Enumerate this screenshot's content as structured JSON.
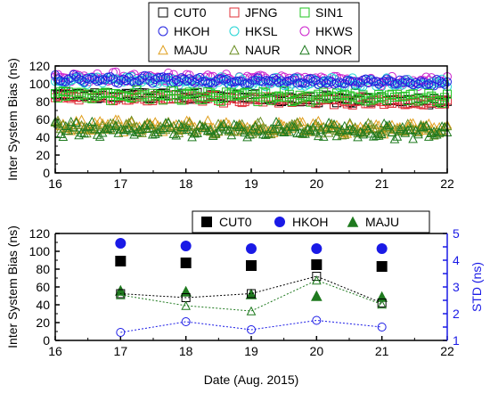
{
  "chart_data": [
    {
      "type": "scatter",
      "title": "",
      "xlabel": "",
      "ylabel": "Inter System Bias (ns)",
      "xlim": [
        16,
        22
      ],
      "ylim": [
        0,
        120
      ],
      "xticks": [
        "16",
        "17",
        "18",
        "19",
        "20",
        "21",
        "22"
      ],
      "yticks": [
        "0",
        "20",
        "40",
        "60",
        "80",
        "100",
        "120"
      ],
      "legend_placement": "top-center",
      "legend": [
        {
          "name": "CUT0",
          "marker": "square",
          "color": "#000000"
        },
        {
          "name": "JFNG",
          "marker": "square",
          "color": "#e0303a"
        },
        {
          "name": "SIN1",
          "marker": "square",
          "color": "#22c422"
        },
        {
          "name": "HKOH",
          "marker": "circle",
          "color": "#2020e0"
        },
        {
          "name": "HKSL",
          "marker": "circle",
          "color": "#22d4d4"
        },
        {
          "name": "HKWS",
          "marker": "circle",
          "color": "#cc22cc"
        },
        {
          "name": "MAJU",
          "marker": "triangle",
          "color": "#e0a020"
        },
        {
          "name": "NAUR",
          "marker": "triangle",
          "color": "#6b8e23"
        },
        {
          "name": "NNOR",
          "marker": "triangle",
          "color": "#1f7a1f"
        }
      ],
      "series": [
        {
          "name": "HKWS",
          "color": "#cc22cc",
          "marker": "circle",
          "range": [
            16.0,
            22.0
          ],
          "start": 108,
          "end": 103,
          "jitter": 4
        },
        {
          "name": "HKSL",
          "color": "#22d4d4",
          "marker": "circle",
          "range": [
            16.0,
            22.0
          ],
          "start": 104,
          "end": 100,
          "jitter": 4
        },
        {
          "name": "HKOH",
          "color": "#2020e0",
          "marker": "circle",
          "range": [
            16.0,
            22.0
          ],
          "start": 106,
          "end": 101,
          "jitter": 3
        },
        {
          "name": "CUT0",
          "color": "#000000",
          "marker": "square",
          "range": [
            16.0,
            22.0
          ],
          "start": 89,
          "end": 80,
          "jitter": 3
        },
        {
          "name": "JFNG",
          "color": "#e0303a",
          "marker": "square",
          "range": [
            16.0,
            22.0
          ],
          "start": 86,
          "end": 79,
          "jitter": 3
        },
        {
          "name": "SIN1",
          "color": "#22c422",
          "marker": "square",
          "range": [
            16.0,
            22.0
          ],
          "start": 88,
          "end": 84,
          "jitter": 4
        },
        {
          "name": "MAJU",
          "color": "#e0a020",
          "marker": "triangle",
          "range": [
            16.0,
            22.0
          ],
          "start": 54,
          "end": 50,
          "jitter": 5
        },
        {
          "name": "NAUR",
          "color": "#6b8e23",
          "marker": "triangle",
          "range": [
            16.0,
            22.0
          ],
          "start": 52,
          "end": 49,
          "jitter": 5
        },
        {
          "name": "NNOR",
          "color": "#1f7a1f",
          "marker": "triangle",
          "range": [
            16.0,
            22.0
          ],
          "start": 50,
          "end": 47,
          "jitter": 6
        }
      ]
    },
    {
      "type": "scatter",
      "title": "",
      "xlabel": "Date (Aug. 2015)",
      "ylabel": "Inter System Bias (ns)",
      "ylabel_right": "STD (ns)",
      "xlim": [
        16,
        22
      ],
      "ylim": [
        0,
        120
      ],
      "ylim_right": [
        1,
        5
      ],
      "xticks": [
        "16",
        "17",
        "18",
        "19",
        "20",
        "21",
        "22"
      ],
      "yticks": [
        "0",
        "20",
        "40",
        "60",
        "80",
        "100",
        "120"
      ],
      "yticks_right": [
        "1",
        "1.5",
        "2",
        "2.5",
        "3",
        "3.5",
        "4",
        "4.5",
        "5"
      ],
      "legend_placement": "top-center",
      "legend": [
        {
          "name": "CUT0",
          "marker": "square",
          "color": "#000000"
        },
        {
          "name": "HKOH",
          "marker": "circle",
          "color": "#1a1ae6"
        },
        {
          "name": "MAJU",
          "marker": "triangle",
          "color": "#1f7a1f"
        }
      ],
      "x": [
        17,
        18,
        19,
        20,
        21
      ],
      "series": [
        {
          "name": "CUT0",
          "axis": "left",
          "marker": "square",
          "filled": true,
          "color": "#000000",
          "values": [
            89,
            87,
            84,
            85,
            83
          ]
        },
        {
          "name": "HKOH",
          "axis": "left",
          "marker": "circle",
          "filled": true,
          "color": "#1a1ae6",
          "values": [
            109,
            106,
            103,
            103,
            103
          ]
        },
        {
          "name": "MAJU",
          "axis": "left",
          "marker": "triangle",
          "filled": true,
          "color": "#1f7a1f",
          "values": [
            56,
            55,
            52,
            50,
            49
          ]
        },
        {
          "name": "CUT0",
          "axis": "right",
          "marker": "square",
          "filled": false,
          "dashed": true,
          "color": "#000000",
          "values": [
            2.75,
            2.6,
            2.75,
            3.4,
            2.4
          ]
        },
        {
          "name": "HKOH",
          "axis": "right",
          "marker": "circle",
          "filled": false,
          "dashed": true,
          "color": "#1a1ae6",
          "values": [
            1.3,
            1.7,
            1.4,
            1.75,
            1.5
          ]
        },
        {
          "name": "MAJU",
          "axis": "right",
          "marker": "triangle",
          "filled": false,
          "dashed": true,
          "color": "#1f7a1f",
          "values": [
            2.7,
            2.3,
            2.1,
            3.25,
            2.35
          ]
        }
      ]
    }
  ]
}
